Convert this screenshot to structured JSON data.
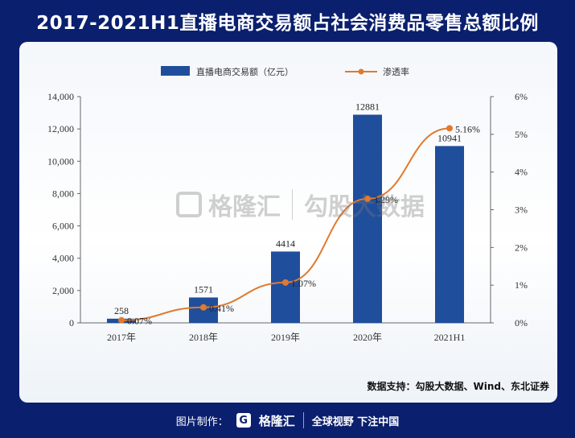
{
  "header": {
    "title": "2017-2021H1直播电商交易额占社会消费品零售总额比例"
  },
  "chart_data": {
    "type": "bar+line",
    "categories": [
      "2017年",
      "2018年",
      "2019年",
      "2020年",
      "2021H1"
    ],
    "series": [
      {
        "name": "直播电商交易额（亿元）",
        "type": "bar",
        "axis": "left",
        "values": [
          258,
          1571,
          4414,
          12881,
          10941
        ],
        "labels": [
          "258",
          "1571",
          "4414",
          "12881",
          "10941"
        ]
      },
      {
        "name": "渗透率",
        "type": "line",
        "axis": "right",
        "values": [
          0.07,
          0.41,
          1.07,
          3.29,
          5.16
        ],
        "labels": [
          "0.07%",
          "0.41%",
          "1.07%",
          "3.29%",
          "5.16%"
        ]
      }
    ],
    "y_left": {
      "min": 0,
      "max": 14000,
      "ticks": [
        0,
        2000,
        4000,
        6000,
        8000,
        10000,
        12000,
        14000
      ],
      "tick_labels": [
        "0",
        "2,000",
        "4,000",
        "6,000",
        "8,000",
        "10,000",
        "12,000",
        "14,000"
      ]
    },
    "y_right": {
      "min": 0,
      "max": 6,
      "ticks": [
        0,
        1,
        2,
        3,
        4,
        5,
        6
      ],
      "tick_labels": [
        "0%",
        "1%",
        "2%",
        "3%",
        "4%",
        "5%",
        "6%"
      ]
    },
    "legend_position": "top-center",
    "colors": {
      "bar": "#1f4e9c",
      "line": "#e07a2e"
    }
  },
  "watermark": {
    "brand": "格隆汇",
    "brand_url": "www.gelonghui.com",
    "partner": "勾股大数据",
    "partner_url": "www.gogudata.com"
  },
  "source_note": "数据支持：勾股大数据、Wind、东北证券",
  "footer": {
    "made_by": "图片制作：",
    "logo_letter": "G",
    "brand": "格隆汇",
    "slogan": "全球视野 下注中国"
  }
}
